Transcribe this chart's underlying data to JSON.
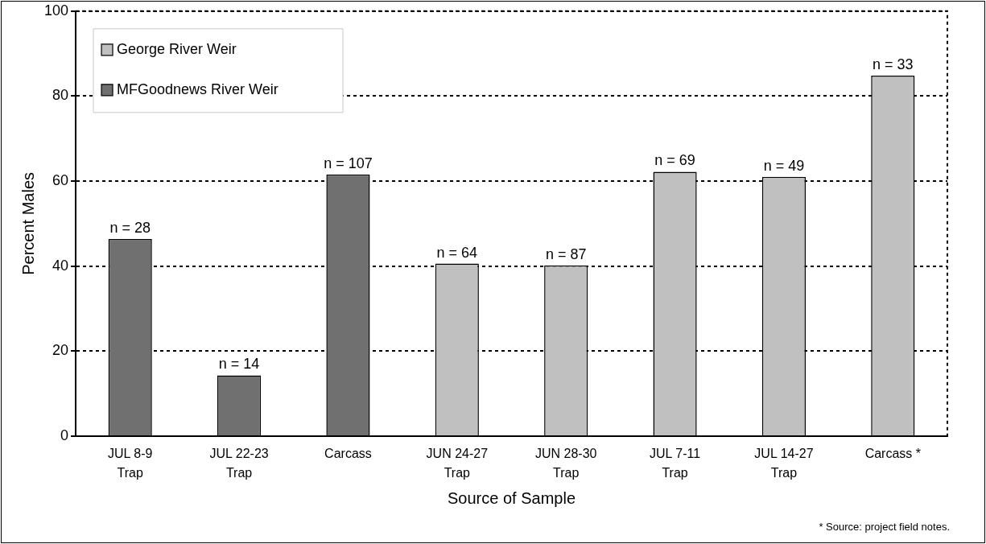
{
  "chart_data": {
    "type": "bar",
    "xlabel": "Source of Sample",
    "ylabel": "Percent Males",
    "categories": [
      "JUL 8-9\nTrap",
      "JUL 22-23\nTrap",
      "Carcass",
      "JUN 24-27\nTrap",
      "JUN 28-30\nTrap",
      "JUL 7-11\nTrap",
      "JUL 14-27\nTrap",
      "Carcass *"
    ],
    "series": [
      {
        "name": "George River Weir",
        "color": "#c0c0c0",
        "values": [
          null,
          null,
          null,
          40.6,
          40.2,
          62.2,
          61.0,
          84.8
        ]
      },
      {
        "name": "MFGoodnews River Weir",
        "color": "#707070",
        "values": [
          46.4,
          14.3,
          61.6,
          null,
          null,
          null,
          null,
          null
        ]
      }
    ],
    "ylim": [
      0,
      100
    ],
    "yticks": [
      0,
      20,
      40,
      60,
      80,
      100
    ],
    "grid": "y",
    "legend": "top left",
    "annotations": [
      {
        "text": "n = 28",
        "x": "JUL 8-9\nTrap",
        "y": 46.4
      },
      {
        "text": "n = 14",
        "x": "JUL 22-23\nTrap",
        "y": 14.3
      },
      {
        "text": "n = 107",
        "x": "Carcass",
        "y": 61.6
      },
      {
        "text": "n = 64",
        "x": "JUN 24-27\nTrap",
        "y": 40.6
      },
      {
        "text": "n = 87",
        "x": "JUN 28-30\nTrap",
        "y": 40.2
      },
      {
        "text": "n = 69",
        "x": "JUL 7-11\nTrap",
        "y": 62.2
      },
      {
        "text": "n = 49",
        "x": "JUL 14-27\nTrap",
        "y": 61.0
      },
      {
        "text": "n = 33",
        "x": "Carcass *",
        "y": 84.8
      },
      "* Source: project field notes."
    ]
  }
}
